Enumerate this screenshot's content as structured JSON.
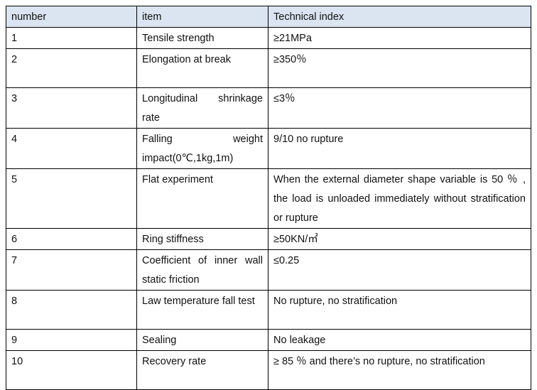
{
  "table": {
    "header": [
      "number",
      "item",
      "Technical index"
    ],
    "rows": [
      [
        "1",
        "Tensile strength",
        "≥21MPa"
      ],
      [
        "2",
        "Elongation at break",
        "≥350％"
      ],
      [
        "3",
        "Longitudinal shrinkage rate",
        "≤3％"
      ],
      [
        "4",
        "Falling weight impact(0℃,1kg,1m)",
        "9/10 no rupture"
      ],
      [
        "5",
        "Flat experiment",
        "When the external diameter shape variable is 50 ％ , the load is unloaded immediately without stratification or rupture"
      ],
      [
        "6",
        "Ring stiffness",
        "≥50KN/㎡"
      ],
      [
        "7",
        "Coefficient of inner wall static friction",
        "≤0.25"
      ],
      [
        "8",
        "Law temperature fall test",
        "No rupture, no stratification"
      ],
      [
        "9",
        "Sealing",
        "No leakage"
      ],
      [
        "10",
        "Recovery rate",
        "≥ 85 ％ and there’s no rupture, no stratification"
      ]
    ]
  }
}
